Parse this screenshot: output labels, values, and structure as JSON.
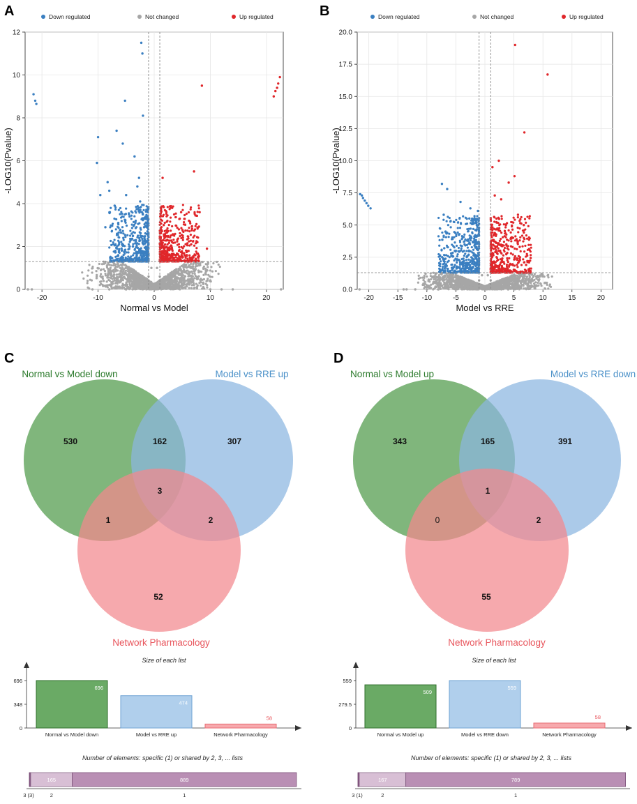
{
  "panels": {
    "a": "A",
    "b": "B",
    "c": "C",
    "d": "D"
  },
  "legend": {
    "down": {
      "label": "Down regulated",
      "color": "#3a7fc1"
    },
    "notchanged": {
      "label": "Not changed",
      "color": "#a6a6a6"
    },
    "up": {
      "label": "Up regulated",
      "color": "#e0262a"
    }
  },
  "colors": {
    "green": "#4f9a49",
    "blue": "#8ab6e0",
    "pink": "#f2888e",
    "green_text": "#2b7a2b",
    "blue_text": "#4a90c8",
    "pink_text": "#e8555c",
    "bar_green": "#6aaa65",
    "bar_blue": "#b0cfec",
    "bar_pink": "#f7a9ad",
    "bar_purple": "#b98fb4",
    "bar_purple_light": "#d8bfd5"
  },
  "chart_data": [
    {
      "type": "scatter",
      "title": "",
      "xlabel": "Normal vs Model",
      "ylabel": "-LOG10(Pvalue)",
      "xlim": [
        -23,
        23
      ],
      "ylim": [
        0,
        12
      ],
      "xticks": [
        "-20",
        "-10",
        "0",
        "10",
        "20"
      ],
      "xtick_values": [
        -20,
        -10,
        0,
        10,
        20
      ],
      "yticks": [
        "0",
        "2",
        "4",
        "6",
        "8",
        "10",
        "12"
      ],
      "ytick_values": [
        0,
        2,
        4,
        6,
        8,
        10,
        12
      ],
      "threshold_y": 1.3,
      "threshold_x": [
        -1,
        1
      ],
      "series": [
        {
          "name": "Down regulated",
          "points": [
            [
              -21.5,
              9.1
            ],
            [
              -21.2,
              8.8
            ],
            [
              -21,
              8.65
            ],
            [
              -2.3,
              11.5
            ],
            [
              -2.1,
              11
            ],
            [
              -2,
              8.1
            ],
            [
              -5.2,
              8.8
            ],
            [
              -10,
              7.1
            ],
            [
              -6.7,
              7.4
            ],
            [
              -10.2,
              5.9
            ],
            [
              -5.6,
              6.8
            ],
            [
              -8.3,
              5
            ],
            [
              -9.6,
              4.4
            ],
            [
              -8,
              4.6
            ],
            [
              -7.9,
              3.6
            ],
            [
              -8.7,
              2.9
            ],
            [
              -6.4,
              3.1
            ],
            [
              -5,
              4.4
            ],
            [
              -4.5,
              3.5
            ],
            [
              -3.5,
              6.2
            ],
            [
              -3,
              4.8
            ],
            [
              -4,
              2.6
            ],
            [
              -3.3,
              3.2
            ],
            [
              -2.7,
              5.2
            ],
            [
              -2.5,
              4.1
            ],
            [
              -2.2,
              3.6
            ],
            [
              -1.8,
              2.9
            ],
            [
              -1.6,
              2.2
            ],
            [
              -3.8,
              2
            ],
            [
              -2.9,
              2.5
            ],
            [
              -1.3,
              1.8
            ],
            [
              -1.2,
              3.4
            ],
            [
              -2.4,
              1.6
            ],
            [
              -5.5,
              2.4
            ],
            [
              -6.9,
              2.1
            ]
          ]
        },
        {
          "name": "Up regulated",
          "points": [
            [
              8.5,
              9.5
            ],
            [
              21.3,
              9
            ],
            [
              21.6,
              9.25
            ],
            [
              21.9,
              9.4
            ],
            [
              22.1,
              9.6
            ],
            [
              22.4,
              9.9
            ],
            [
              7.1,
              5.5
            ],
            [
              1.5,
              5.2
            ],
            [
              8.1,
              3.6
            ],
            [
              4.8,
              3.6
            ],
            [
              6.2,
              3.2
            ],
            [
              7.7,
              2.2
            ],
            [
              9.4,
              1.9
            ],
            [
              1.7,
              3
            ],
            [
              2.4,
              2.7
            ],
            [
              3.2,
              2.2
            ],
            [
              1.2,
              2
            ],
            [
              3.9,
              1.6
            ],
            [
              5.1,
              2.5
            ],
            [
              2.8,
              1.9
            ],
            [
              6.6,
              2.1
            ],
            [
              1.5,
              1.5
            ],
            [
              4.4,
              2.8
            ]
          ]
        },
        {
          "name": "Not changed",
          "points": [
            [
              -22.5,
              0
            ],
            [
              -21.8,
              0
            ],
            [
              -11,
              0
            ],
            [
              -8,
              0
            ],
            [
              -5,
              0
            ],
            [
              10,
              0
            ],
            [
              12,
              0
            ],
            [
              14,
              0
            ],
            [
              22.6,
              0
            ],
            [
              0,
              0.2
            ],
            [
              -1,
              0.6
            ],
            [
              1,
              0.6
            ],
            [
              -0.5,
              1
            ],
            [
              0.5,
              1
            ]
          ]
        }
      ]
    },
    {
      "type": "scatter",
      "title": "",
      "xlabel": "Model vs RRE",
      "ylabel": "-LOG10(Pvalue)",
      "xlim": [
        -22,
        22
      ],
      "ylim": [
        0,
        20
      ],
      "xticks": [
        "-20",
        "-15",
        "-10",
        "-5",
        "0",
        "5",
        "10",
        "15",
        "20"
      ],
      "xtick_values": [
        -20,
        -15,
        -10,
        -5,
        0,
        5,
        10,
        15,
        20
      ],
      "yticks": [
        "0.0",
        "2.5",
        "5.0",
        "7.5",
        "10.0",
        "12.5",
        "15.0",
        "17.5",
        "20.0"
      ],
      "ytick_values": [
        0,
        2.5,
        5,
        7.5,
        10,
        12.5,
        15,
        17.5,
        20
      ],
      "threshold_y": 1.3,
      "threshold_x": [
        -1,
        1
      ],
      "series": [
        {
          "name": "Down regulated",
          "points": [
            [
              -21.5,
              7.4
            ],
            [
              -21.2,
              7.3
            ],
            [
              -21,
              7.1
            ],
            [
              -20.7,
              6.9
            ],
            [
              -20.4,
              6.7
            ],
            [
              -20.1,
              6.5
            ],
            [
              -19.7,
              6.3
            ],
            [
              -7.4,
              8.2
            ],
            [
              -6.5,
              7.8
            ],
            [
              -7.1,
              5.8
            ],
            [
              -4.2,
              6.8
            ],
            [
              -2.5,
              6.3
            ],
            [
              -2.2,
              5.5
            ],
            [
              -1.2,
              6.1
            ],
            [
              -1.4,
              5
            ],
            [
              -3.5,
              3.5
            ],
            [
              -5,
              3
            ],
            [
              -5.8,
              2.8
            ],
            [
              -7,
              2
            ],
            [
              -4.5,
              2.3
            ],
            [
              -2.8,
              2.7
            ],
            [
              -1.8,
              3.4
            ],
            [
              -1.3,
              2.1
            ],
            [
              -3.2,
              1.7
            ],
            [
              -6.4,
              1.6
            ]
          ]
        },
        {
          "name": "Up regulated",
          "points": [
            [
              5.2,
              19
            ],
            [
              10.8,
              16.7
            ],
            [
              6.8,
              12.2
            ],
            [
              2.4,
              10
            ],
            [
              1.3,
              9.5
            ],
            [
              5.1,
              8.8
            ],
            [
              4.1,
              8.3
            ],
            [
              1.7,
              7.3
            ],
            [
              2.8,
              7
            ],
            [
              5.7,
              5.8
            ],
            [
              6.7,
              5
            ],
            [
              4.5,
              4
            ],
            [
              3.7,
              3.5
            ],
            [
              7.6,
              2.2
            ],
            [
              7.1,
              1.9
            ],
            [
              2,
              5.5
            ],
            [
              1.5,
              4.2
            ],
            [
              2.5,
              3
            ],
            [
              3,
              2.4
            ],
            [
              1.2,
              2.8
            ],
            [
              6,
              3.3
            ],
            [
              3.5,
              1.6
            ],
            [
              1.8,
              1.9
            ]
          ]
        },
        {
          "name": "Not changed",
          "points": [
            [
              -21.6,
              0
            ],
            [
              -14,
              0
            ],
            [
              -13.5,
              0
            ],
            [
              -12,
              0
            ],
            [
              -10,
              0
            ],
            [
              -8,
              0
            ],
            [
              4,
              0
            ],
            [
              5,
              0
            ],
            [
              8,
              0.2
            ],
            [
              0,
              0.2
            ],
            [
              -1,
              0.7
            ],
            [
              1,
              0.7
            ],
            [
              -0.5,
              1.1
            ],
            [
              0.5,
              1.1
            ]
          ]
        }
      ]
    },
    {
      "type": "venn",
      "sets": [
        {
          "name": "Normal vs Model down",
          "size": 696
        },
        {
          "name": "Model vs RRE up",
          "size": 474
        },
        {
          "name": "Network Pharmacology",
          "size": 58
        }
      ],
      "regions": {
        "a_only": "530",
        "ab": "162",
        "b_only": "307",
        "abc": "3",
        "ac": "1",
        "bc": "2",
        "c_only": "52"
      },
      "bar": {
        "title": "Size of each list",
        "yticks": [
          "696",
          "348",
          "0"
        ],
        "ymax": 696,
        "bars": [
          {
            "label": "Normal vs Model down",
            "value": 696,
            "value_label": "696"
          },
          {
            "label": "Model vs RRE up",
            "value": 474,
            "value_label": "474"
          },
          {
            "label": "Network Pharmacology",
            "value": 58,
            "value_label": "58"
          }
        ]
      },
      "shared": {
        "title": "Number of elements: specific (1) or shared by 2, 3, ... lists",
        "segments": [
          {
            "label": "3 (3)",
            "value": 3,
            "value_label": ""
          },
          {
            "label": "2",
            "value": 165,
            "value_label": "165"
          },
          {
            "label": "1",
            "value": 889,
            "value_label": "889"
          }
        ]
      }
    },
    {
      "type": "venn",
      "sets": [
        {
          "name": "Normal vs Model up",
          "size": 509
        },
        {
          "name": "Model vs RRE down",
          "size": 559
        },
        {
          "name": "Network Pharmacology",
          "size": 58
        }
      ],
      "regions": {
        "a_only": "343",
        "ab": "165",
        "b_only": "391",
        "abc": "1",
        "ac": "0",
        "bc": "2",
        "c_only": "55"
      },
      "bar": {
        "title": "Size of each list",
        "yticks": [
          "559",
          "279.5",
          "0"
        ],
        "ymax": 559,
        "bars": [
          {
            "label": "Normal vs Model up",
            "value": 509,
            "value_label": "509"
          },
          {
            "label": "Model vs RRE down",
            "value": 559,
            "value_label": "559"
          },
          {
            "label": "Network Pharmacology",
            "value": 58,
            "value_label": "58"
          }
        ]
      },
      "shared": {
        "title": "Number of elements: specific (1) or shared by 2, 3, ... lists",
        "segments": [
          {
            "label": "3 (1)",
            "value": 1,
            "value_label": ""
          },
          {
            "label": "2",
            "value": 167,
            "value_label": "167"
          },
          {
            "label": "1",
            "value": 789,
            "value_label": "789"
          }
        ]
      }
    }
  ]
}
